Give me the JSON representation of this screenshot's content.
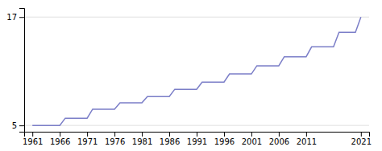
{
  "chart_data": {
    "type": "line",
    "x": [
      1961,
      1962,
      1963,
      1964,
      1965,
      1966,
      1967,
      1968,
      1969,
      1970,
      1971,
      1972,
      1973,
      1974,
      1975,
      1976,
      1977,
      1978,
      1979,
      1980,
      1981,
      1982,
      1983,
      1984,
      1985,
      1986,
      1987,
      1988,
      1989,
      1990,
      1991,
      1992,
      1993,
      1994,
      1995,
      1996,
      1997,
      1998,
      1999,
      2000,
      2001,
      2002,
      2003,
      2004,
      2005,
      2006,
      2007,
      2008,
      2009,
      2010,
      2011,
      2012,
      2013,
      2014,
      2015,
      2016,
      2017,
      2018,
      2019,
      2020,
      2021
    ],
    "values": [
      5.0,
      5.0,
      5.0,
      5.0,
      5.0,
      5.0,
      5.8,
      5.8,
      5.8,
      5.8,
      5.8,
      6.8,
      6.8,
      6.8,
      6.8,
      6.8,
      7.5,
      7.5,
      7.5,
      7.5,
      7.5,
      8.2,
      8.2,
      8.2,
      8.2,
      8.2,
      9.0,
      9.0,
      9.0,
      9.0,
      9.0,
      9.8,
      9.8,
      9.8,
      9.8,
      9.8,
      10.7,
      10.7,
      10.7,
      10.7,
      10.7,
      11.6,
      11.6,
      11.6,
      11.6,
      11.6,
      12.6,
      12.6,
      12.6,
      12.6,
      12.6,
      13.7,
      13.7,
      13.7,
      13.7,
      13.7,
      15.3,
      15.3,
      15.3,
      15.3,
      17.0
    ],
    "color": "#7b7ec8",
    "xlim": [
      1959.5,
      2022.5
    ],
    "ylim": [
      4.3,
      18.0
    ],
    "xticks": [
      1961,
      1966,
      1971,
      1976,
      1981,
      1986,
      1991,
      1996,
      2001,
      2006,
      2011,
      2021
    ],
    "yticks": [
      5,
      17
    ],
    "grid": true
  }
}
